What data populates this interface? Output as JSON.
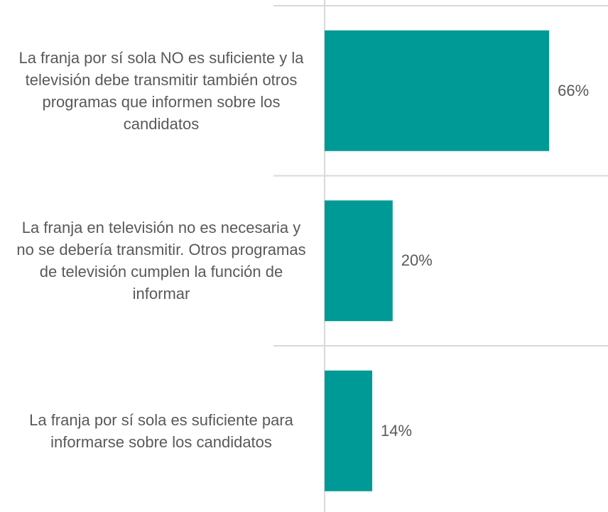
{
  "chart_data": {
    "type": "barh",
    "categories": [
      "La franja por sí sola NO es suficiente y la televisión debe transmitir también otros programas que informen sobre los candidatos",
      "La franja en televisión no es necesaria y no se debería transmitir. Otros programas de televisión cumplen la función de informar",
      "La franja por sí sola es suficiente para informarse sobre los candidatos"
    ],
    "values": [
      66,
      20,
      14
    ],
    "value_labels": [
      "66%",
      "20%",
      "14%"
    ],
    "color": "#009a96"
  }
}
